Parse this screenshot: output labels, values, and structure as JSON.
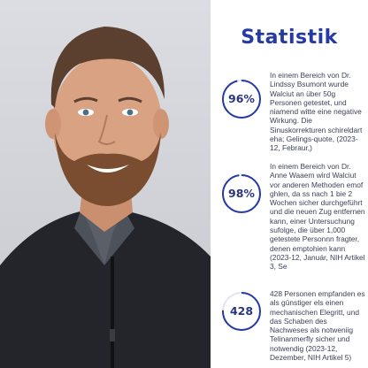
{
  "photo": {
    "alt": "portrait of a smiling bearded man in a dark zip sweater"
  },
  "panel": {
    "title": "Statistik",
    "accent_color": "#263aa3",
    "stats": [
      {
        "value": "96%",
        "text": "In einem Bereich von Dr. Lindssy Bsumont wurde Walciut an über 50g Personen getestet, und niamend witte eine negative Wirkung. Die Sinuskorrekturen schireldart eha; Gelings-quote, (2023-12, Febraur,)"
      },
      {
        "value": "98%",
        "text": "In einem Bereich von Dr. Anne Waaem wird Walciut vor anderen Methoden emof ghlen, da ss nach 1 bie 2 Wochen sicher durchgeführt und die neuen Zug entfernen kann, einer Untersuchung sufolge, die über 1,000 getestete Personnn fragter, denen emptohien kann (2023-12, Január, NIH Artikel 3, Se"
      },
      {
        "value": "428",
        "text": "428 Personen empfanden es als günstiger els einen mechanischen Elegritt, und das Schaben des Nachweses als notweniig Telinanmerfly sicher und notwendig (2023-12, Dezember, NIH Artikel 5)"
      }
    ]
  }
}
